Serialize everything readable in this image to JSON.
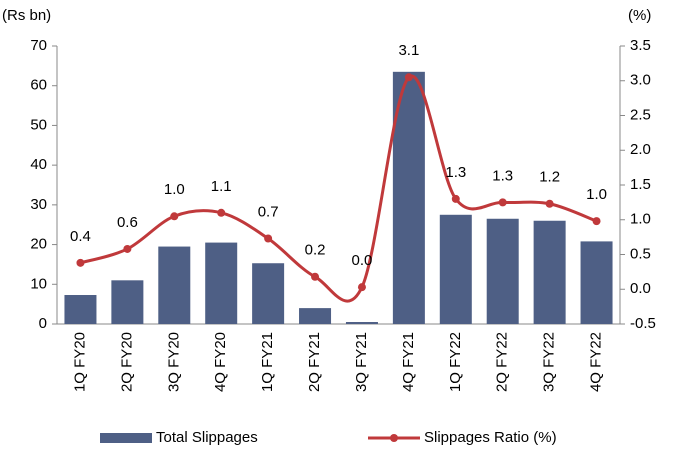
{
  "chart_data": {
    "type": "bar-line",
    "y_label": "(Rs bn)",
    "y2_label": "(%)",
    "categories": [
      "1Q FY20",
      "2Q FY20",
      "3Q FY20",
      "4Q FY20",
      "1Q FY21",
      "2Q FY21",
      "3Q FY21",
      "4Q FY21",
      "1Q FY22",
      "2Q FY22",
      "3Q FY22",
      "4Q FY22"
    ],
    "series": [
      {
        "name": "Total Slippages",
        "type": "bar",
        "color": "#4e5f85",
        "values": [
          7.3,
          11,
          19.5,
          20.5,
          15.3,
          4,
          0.5,
          63.5,
          27.5,
          26.5,
          26,
          20.8
        ]
      },
      {
        "name": "Slippages Ratio (%)",
        "type": "line",
        "axis": "y2",
        "color": "#c0393b",
        "values": [
          0.38,
          0.58,
          1.05,
          1.1,
          0.73,
          0.18,
          0.03,
          3.05,
          1.3,
          1.25,
          1.23,
          0.98
        ],
        "value_labels": [
          "0.4",
          "0.6",
          "1.0",
          "1.1",
          "0.7",
          "0.2",
          "0.0",
          "3.1",
          "1.3",
          "1.3",
          "1.2",
          "1.0"
        ]
      }
    ],
    "ylim": [
      0,
      70
    ],
    "yticks": [
      0,
      10,
      20,
      30,
      40,
      50,
      60,
      70
    ],
    "y2lim": [
      -0.5,
      3.5
    ],
    "y2ticks": [
      -0.5,
      {
        "value": 0,
        "label": "0.0"
      },
      0.5,
      {
        "value": 1,
        "label": "1.0"
      },
      1.5,
      {
        "value": 2,
        "label": "2.0"
      },
      2.5,
      {
        "value": 3,
        "label": "3.0"
      },
      3.5
    ],
    "legend": "bottom"
  }
}
